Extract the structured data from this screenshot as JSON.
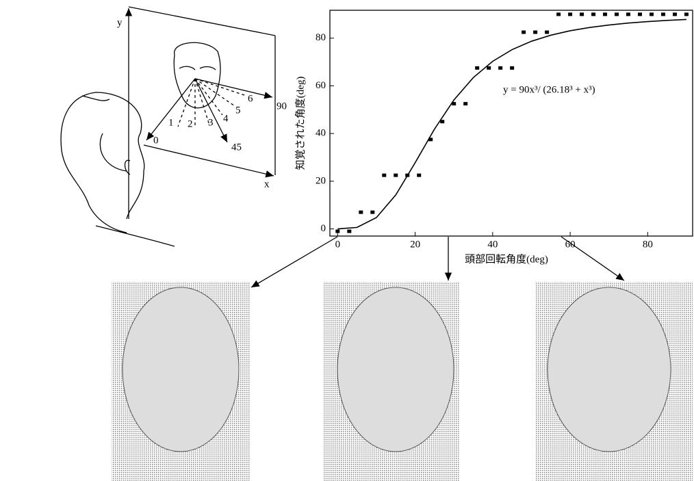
{
  "chart_data": {
    "type": "scatter",
    "x_label": "頭部回転角度(deg)",
    "y_label": "知覚された角度(deg)",
    "annotation": "y = 90x³/ (26.18³ + x³)",
    "points": {
      "x": [
        0,
        3,
        6,
        9,
        12,
        15,
        18,
        21,
        24,
        27,
        30,
        33,
        36,
        39,
        42,
        45,
        48,
        51,
        54,
        57,
        60,
        63,
        66,
        69,
        72,
        75,
        78,
        81,
        84,
        87,
        90
      ],
      "values": [
        -1,
        -1,
        7,
        7,
        22.5,
        22.5,
        22.5,
        22.5,
        37.5,
        45,
        52.5,
        52.5,
        67.5,
        67.5,
        67.5,
        67.5,
        82.5,
        82.5,
        82.5,
        90,
        90,
        90,
        90,
        90,
        90,
        90,
        90,
        90,
        90,
        90,
        90
      ]
    },
    "fit": {
      "x": [
        0,
        5,
        10,
        15,
        20,
        25,
        30,
        35,
        40,
        45,
        50,
        55,
        60,
        65,
        70,
        75,
        80,
        85,
        90
      ],
      "values": [
        0,
        0.62,
        4.75,
        14.25,
        27.75,
        41.89,
        54.07,
        63.45,
        70.29,
        75.19,
        78.7,
        81.24,
        83.1,
        84.48,
        85.52,
        86.33,
        86.95,
        87.45,
        87.84
      ]
    },
    "color": "#000000",
    "xlim": [
      -2,
      91.6
    ],
    "ylim": [
      -3,
      91.7
    ],
    "xticks": [
      0,
      20,
      40,
      60,
      80
    ],
    "yticks": [
      0,
      20,
      40,
      60,
      80
    ]
  },
  "diagram": {
    "axis_y": "y",
    "axis_x": "x",
    "angle_0": "0",
    "angle_45": "45",
    "angle_90": "90",
    "positions": [
      "1",
      "2",
      "3",
      "4",
      "5",
      "6"
    ]
  }
}
